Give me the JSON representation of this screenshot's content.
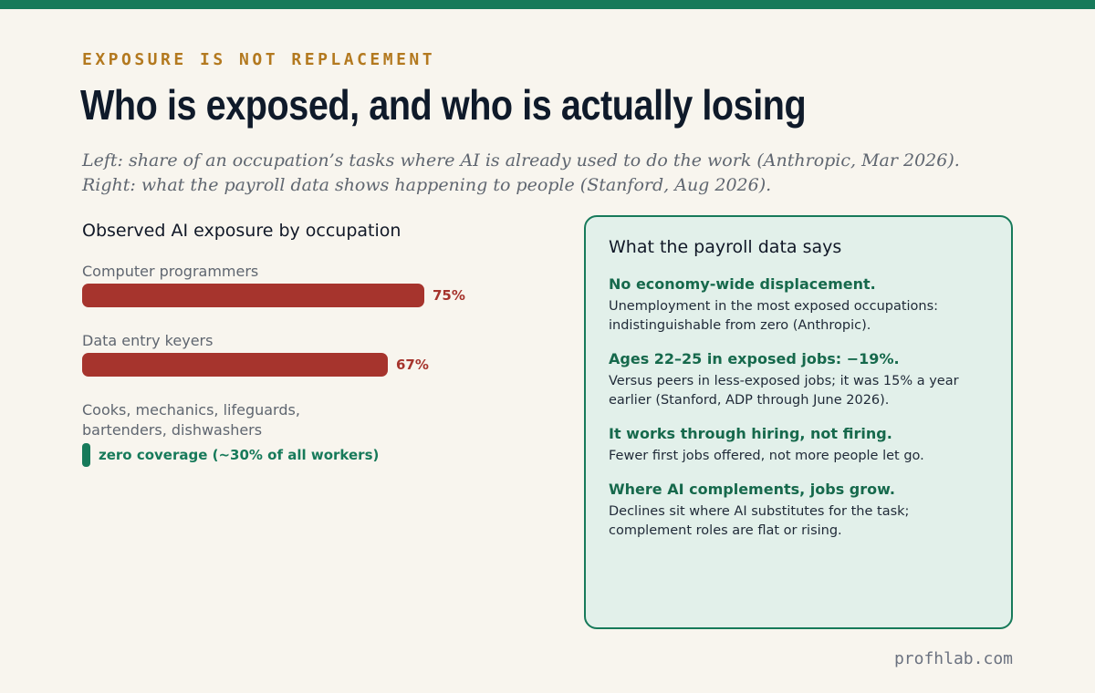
{
  "eyebrow": "EXPOSURE IS NOT REPLACEMENT",
  "title": "Who is exposed, and who is actually losing",
  "subtitle": "Left: share of an occupation’s tasks where AI is already used to do the work (Anthropic, Mar 2026). Right: what the payroll data shows happening to people (Stanford, Aug 2026).",
  "colors": {
    "accent": "#177a5a",
    "bar": "#a6342d",
    "eyebrow": "#b3791f"
  },
  "chart_data": {
    "type": "bar",
    "orientation": "horizontal",
    "title": "Observed AI exposure by occupation",
    "categories": [
      "Computer programmers",
      "Data entry keyers",
      "Cooks, mechanics, lifeguards, bartenders, dishwashers"
    ],
    "values": [
      75,
      67,
      0
    ],
    "value_labels": [
      "75%",
      "67%",
      "zero coverage (~30% of all workers)"
    ],
    "xlim": [
      0,
      100
    ],
    "grid": false,
    "legend": "none"
  },
  "card": {
    "title": "What the payroll data says",
    "points": [
      {
        "head": "No economy-wide displacement.",
        "body": "Unemployment in the most exposed occupations: indistinguishable from zero (Anthropic)."
      },
      {
        "head": "Ages 22–25 in exposed jobs: −19%.",
        "body": "Versus peers in less-exposed jobs; it was 15% a year earlier (Stanford, ADP through June 2026)."
      },
      {
        "head": "It works through hiring, not firing.",
        "body": "Fewer first jobs offered, not more people let go."
      },
      {
        "head": "Where AI complements, jobs grow.",
        "body": "Declines sit where AI substitutes for the task; complement roles are flat or rising."
      }
    ]
  },
  "footer": "profhlab.com"
}
